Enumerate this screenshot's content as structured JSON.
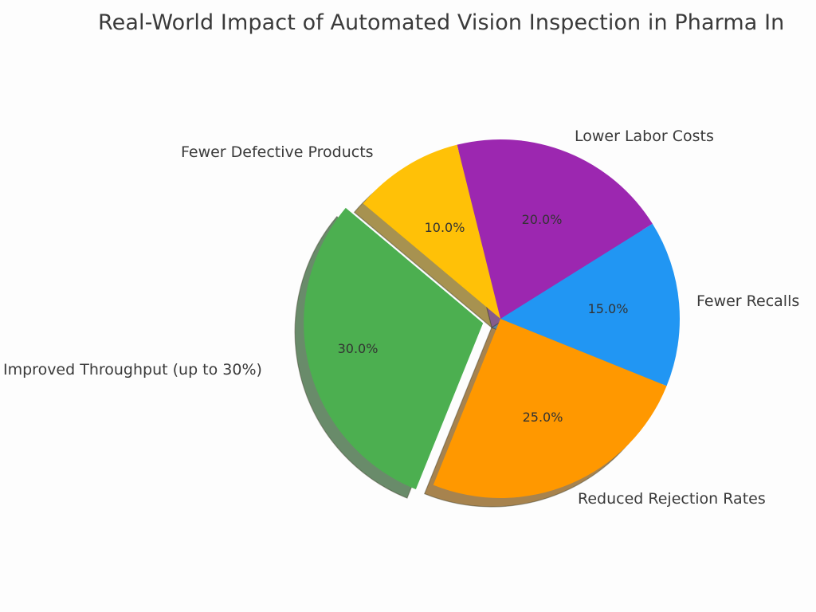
{
  "chart_data": {
    "type": "pie",
    "title": "Real-World Impact of Automated Vision Inspection in Pharma In",
    "start_angle_deg": 140,
    "autopct_format": "%1.1f%%",
    "shadow": true,
    "slices": [
      {
        "label": "Improved Throughput (up to 30%)",
        "value": 30.0,
        "pct_label": "30.0%",
        "color": "#4caf50",
        "explode": 0.1
      },
      {
        "label": "Reduced Rejection Rates",
        "value": 25.0,
        "pct_label": "25.0%",
        "color": "#ff9800",
        "explode": 0
      },
      {
        "label": "Fewer Recalls",
        "value": 15.0,
        "pct_label": "15.0%",
        "color": "#2196f3",
        "explode": 0
      },
      {
        "label": "Lower Labor Costs",
        "value": 20.0,
        "pct_label": "20.0%",
        "color": "#9c27b0",
        "explode": 0
      },
      {
        "label": "Fewer Defective Products",
        "value": 10.0,
        "pct_label": "10.0%",
        "color": "#ffc107",
        "explode": 0
      }
    ]
  }
}
